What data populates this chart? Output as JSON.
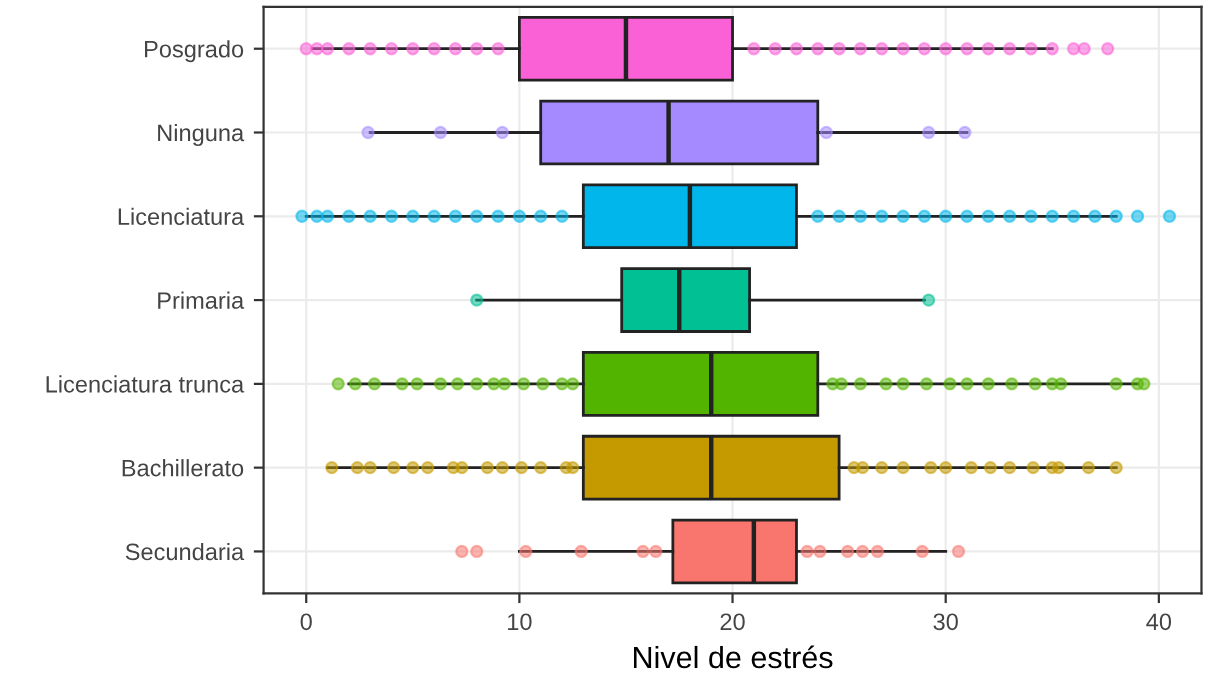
{
  "chart_data": {
    "type": "box",
    "orientation": "horizontal",
    "xlabel": "Nivel de estrés",
    "categories": [
      "Posgrado",
      "Ninguna",
      "Licenciatura",
      "Primaria",
      "Licenciatura trunca",
      "Bachillerato",
      "Secundaria"
    ],
    "colors": [
      "#fb61d7",
      "#a58aff",
      "#00b6eb",
      "#00c094",
      "#53b400",
      "#c49a00",
      "#f8766d"
    ],
    "boxes": [
      {
        "low": 0.3,
        "q1": 10,
        "median": 15,
        "q3": 20,
        "high": 35
      },
      {
        "low": 3,
        "q1": 11,
        "median": 17,
        "q3": 24,
        "high": 31
      },
      {
        "low": 0,
        "q1": 13,
        "median": 18,
        "q3": 23,
        "high": 38
      },
      {
        "low": 8,
        "q1": 14.8,
        "median": 17.5,
        "q3": 20.8,
        "high": 29
      },
      {
        "low": 2,
        "q1": 13,
        "median": 19,
        "q3": 24,
        "high": 39
      },
      {
        "low": 1,
        "q1": 13,
        "median": 19,
        "q3": 25,
        "high": 38
      },
      {
        "low": 10,
        "q1": 17.2,
        "median": 21,
        "q3": 23,
        "high": 30
      }
    ],
    "series": [
      {
        "type": "scatter",
        "color": "#fb61d7",
        "x": [
          "Posgrado",
          "Posgrado",
          "Posgrado",
          "Posgrado",
          "Posgrado",
          "Posgrado",
          "Posgrado",
          "Posgrado",
          "Posgrado",
          "Posgrado",
          "Posgrado",
          "Posgrado",
          "Posgrado",
          "Posgrado",
          "Posgrado",
          "Posgrado",
          "Posgrado",
          "Posgrado",
          "Posgrado",
          "Posgrado",
          "Posgrado",
          "Posgrado",
          "Posgrado",
          "Posgrado",
          "Posgrado",
          "Posgrado",
          "Posgrado",
          "Posgrado",
          "Posgrado"
        ],
        "values": [
          0,
          0.5,
          1,
          2,
          3,
          4,
          5,
          6,
          7,
          8,
          9,
          21,
          22,
          23,
          24,
          25,
          26,
          27,
          28,
          29,
          30,
          31,
          32,
          33,
          34,
          35,
          36,
          36.5,
          37.6
        ]
      },
      {
        "type": "scatter",
        "color": "#a58aff",
        "x": [
          "Ninguna",
          "Ninguna",
          "Ninguna",
          "Ninguna",
          "Ninguna",
          "Ninguna",
          "Ninguna"
        ],
        "values": [
          2.9,
          6.3,
          9.2,
          null,
          24.4,
          29.2,
          30.9
        ]
      },
      {
        "type": "scatter",
        "color": "#00b6eb",
        "x": [
          "Licenciatura",
          "Licenciatura",
          "Licenciatura",
          "Licenciatura",
          "Licenciatura",
          "Licenciatura",
          "Licenciatura",
          "Licenciatura",
          "Licenciatura",
          "Licenciatura",
          "Licenciatura",
          "Licenciatura",
          "Licenciatura",
          "Licenciatura",
          "Licenciatura",
          "Licenciatura",
          "Licenciatura",
          "Licenciatura",
          "Licenciatura",
          "Licenciatura",
          "Licenciatura",
          "Licenciatura",
          "Licenciatura",
          "Licenciatura",
          "Licenciatura",
          "Licenciatura",
          "Licenciatura",
          "Licenciatura",
          "Licenciatura",
          "Licenciatura",
          "Licenciatura"
        ],
        "values": [
          -0.2,
          0.5,
          1,
          2,
          3,
          4,
          5,
          6,
          7,
          8,
          9,
          10,
          11,
          12,
          24,
          25,
          26,
          27,
          28,
          29,
          30,
          31,
          32,
          33,
          34,
          35,
          36,
          37,
          38,
          39,
          40.5
        ]
      },
      {
        "type": "scatter",
        "color": "#00c094",
        "x": [
          "Primaria",
          "Primaria"
        ],
        "values": [
          8.0,
          29.2
        ]
      },
      {
        "type": "scatter",
        "color": "#53b400",
        "x": [
          "Licenciatura trunca",
          "Licenciatura trunca",
          "Licenciatura trunca",
          "Licenciatura trunca",
          "Licenciatura trunca",
          "Licenciatura trunca",
          "Licenciatura trunca",
          "Licenciatura trunca",
          "Licenciatura trunca",
          "Licenciatura trunca",
          "Licenciatura trunca",
          "Licenciatura trunca",
          "Licenciatura trunca",
          "Licenciatura trunca",
          "Licenciatura trunca",
          "Licenciatura trunca",
          "Licenciatura trunca",
          "Licenciatura trunca",
          "Licenciatura trunca",
          "Licenciatura trunca",
          "Licenciatura trunca",
          "Licenciatura trunca",
          "Licenciatura trunca",
          "Licenciatura trunca",
          "Licenciatura trunca",
          "Licenciatura trunca",
          "Licenciatura trunca",
          "Licenciatura trunca",
          "Licenciatura trunca",
          "Licenciatura trunca"
        ],
        "values": [
          1.5,
          2.3,
          3.2,
          4.5,
          5.2,
          6.3,
          7.1,
          8.0,
          8.8,
          9.3,
          10.2,
          11.1,
          12.0,
          24.7,
          25.1,
          26.0,
          27.2,
          28.0,
          29.1,
          30.2,
          31.0,
          32.0,
          33.1,
          34.2,
          35.0,
          35.4,
          38.0,
          39.0,
          39.3,
          12.5
        ]
      },
      {
        "type": "scatter",
        "color": "#c49a00",
        "x": [
          "Bachillerato",
          "Bachillerato",
          "Bachillerato",
          "Bachillerato",
          "Bachillerato",
          "Bachillerato",
          "Bachillerato",
          "Bachillerato",
          "Bachillerato",
          "Bachillerato",
          "Bachillerato",
          "Bachillerato",
          "Bachillerato",
          "Bachillerato",
          "Bachillerato",
          "Bachillerato",
          "Bachillerato",
          "Bachillerato",
          "Bachillerato",
          "Bachillerato",
          "Bachillerato",
          "Bachillerato",
          "Bachillerato",
          "Bachillerato",
          "Bachillerato",
          "Bachillerato",
          "Bachillerato",
          "Bachillerato"
        ],
        "values": [
          1.2,
          2.4,
          3.0,
          4.1,
          5.0,
          5.7,
          6.9,
          7.3,
          8.5,
          9.2,
          10.1,
          11.0,
          12.2,
          25.7,
          26.1,
          27.0,
          28.0,
          29.3,
          30.0,
          31.2,
          32.1,
          33.0,
          34.1,
          35.0,
          35.3,
          36.7,
          38.0,
          12.5
        ]
      },
      {
        "type": "scatter",
        "color": "#f8766d",
        "x": [
          "Secundaria",
          "Secundaria",
          "Secundaria",
          "Secundaria",
          "Secundaria",
          "Secundaria",
          "Secundaria",
          "Secundaria",
          "Secundaria",
          "Secundaria",
          "Secundaria",
          "Secundaria",
          "Secundaria",
          "Secundaria"
        ],
        "values": [
          7.3,
          8.0,
          10.3,
          12.9,
          15.8,
          16.4,
          null,
          23.5,
          24.1,
          25.4,
          26.1,
          26.8,
          28.9,
          30.6
        ]
      }
    ],
    "xlim": [
      -2,
      42
    ],
    "xticks": [
      0,
      10,
      20,
      30,
      40
    ],
    "grid": true,
    "legend": false
  }
}
